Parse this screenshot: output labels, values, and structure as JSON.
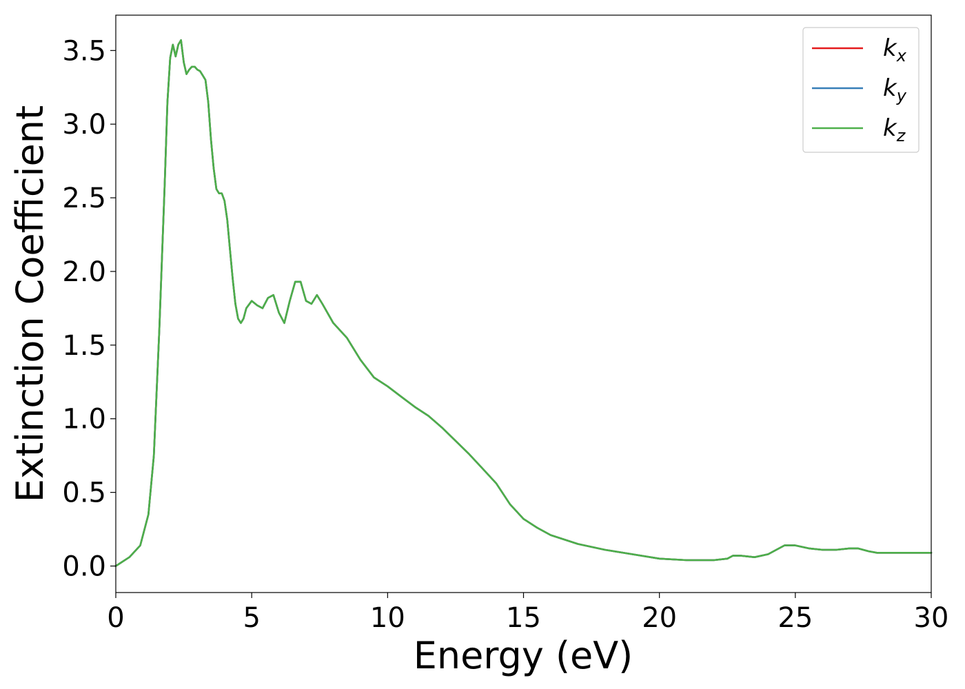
{
  "chart_data": {
    "type": "line",
    "xlabel": "Energy (eV)",
    "ylabel": "Extinction Coefficient",
    "xlim": [
      0,
      30
    ],
    "ylim": [
      -0.18,
      3.74
    ],
    "xticks": [
      0,
      5,
      10,
      15,
      20,
      25,
      30
    ],
    "xtick_labels": [
      "0",
      "5",
      "10",
      "15",
      "20",
      "25",
      "30"
    ],
    "yticks": [
      0.0,
      0.5,
      1.0,
      1.5,
      2.0,
      2.5,
      3.0,
      3.5
    ],
    "ytick_labels": [
      "0.0",
      "0.5",
      "1.0",
      "1.5",
      "2.0",
      "2.5",
      "3.0",
      "3.5"
    ],
    "grid": false,
    "legend_position": "top-right",
    "x": [
      0,
      0.5,
      0.9,
      1.2,
      1.4,
      1.6,
      1.8,
      1.9,
      2.0,
      2.1,
      2.2,
      2.3,
      2.4,
      2.5,
      2.6,
      2.7,
      2.8,
      2.9,
      3.0,
      3.1,
      3.2,
      3.3,
      3.4,
      3.5,
      3.6,
      3.7,
      3.8,
      3.9,
      4.0,
      4.1,
      4.2,
      4.3,
      4.4,
      4.5,
      4.6,
      4.7,
      4.8,
      5.0,
      5.2,
      5.4,
      5.6,
      5.8,
      6.0,
      6.2,
      6.4,
      6.6,
      6.8,
      7.0,
      7.2,
      7.4,
      7.6,
      8.0,
      8.5,
      9.0,
      9.5,
      10.0,
      10.5,
      11.0,
      11.5,
      12.0,
      12.5,
      13.0,
      13.5,
      14.0,
      14.5,
      15.0,
      15.5,
      16.0,
      17.0,
      18.0,
      19.0,
      20.0,
      21.0,
      22.0,
      22.5,
      22.7,
      23.0,
      23.5,
      24.0,
      24.3,
      24.6,
      25.0,
      25.5,
      26.0,
      26.5,
      27.0,
      27.3,
      27.7,
      28.0,
      28.5,
      29.0,
      30.0
    ],
    "series": [
      {
        "name": "k_x",
        "color": "#e41a1c",
        "values": [
          0.0,
          0.06,
          0.14,
          0.35,
          0.75,
          1.6,
          2.6,
          3.15,
          3.45,
          3.54,
          3.46,
          3.54,
          3.57,
          3.42,
          3.34,
          3.37,
          3.39,
          3.39,
          3.37,
          3.36,
          3.33,
          3.3,
          3.15,
          2.9,
          2.7,
          2.56,
          2.53,
          2.53,
          2.48,
          2.35,
          2.15,
          1.95,
          1.78,
          1.68,
          1.65,
          1.68,
          1.75,
          1.8,
          1.77,
          1.75,
          1.82,
          1.84,
          1.72,
          1.65,
          1.8,
          1.93,
          1.93,
          1.8,
          1.78,
          1.84,
          1.78,
          1.65,
          1.55,
          1.4,
          1.28,
          1.22,
          1.15,
          1.08,
          1.02,
          0.94,
          0.85,
          0.76,
          0.66,
          0.56,
          0.42,
          0.32,
          0.26,
          0.21,
          0.15,
          0.11,
          0.08,
          0.05,
          0.04,
          0.04,
          0.05,
          0.07,
          0.07,
          0.06,
          0.08,
          0.11,
          0.14,
          0.14,
          0.12,
          0.11,
          0.11,
          0.12,
          0.12,
          0.1,
          0.09,
          0.09,
          0.09,
          0.09
        ]
      },
      {
        "name": "k_y",
        "color": "#377eb8",
        "values": [
          0.0,
          0.06,
          0.14,
          0.35,
          0.75,
          1.6,
          2.6,
          3.15,
          3.45,
          3.54,
          3.46,
          3.54,
          3.57,
          3.42,
          3.34,
          3.37,
          3.39,
          3.39,
          3.37,
          3.36,
          3.33,
          3.3,
          3.15,
          2.9,
          2.7,
          2.56,
          2.53,
          2.53,
          2.48,
          2.35,
          2.15,
          1.95,
          1.78,
          1.68,
          1.65,
          1.68,
          1.75,
          1.8,
          1.77,
          1.75,
          1.82,
          1.84,
          1.72,
          1.65,
          1.8,
          1.93,
          1.93,
          1.8,
          1.78,
          1.84,
          1.78,
          1.65,
          1.55,
          1.4,
          1.28,
          1.22,
          1.15,
          1.08,
          1.02,
          0.94,
          0.85,
          0.76,
          0.66,
          0.56,
          0.42,
          0.32,
          0.26,
          0.21,
          0.15,
          0.11,
          0.08,
          0.05,
          0.04,
          0.04,
          0.05,
          0.07,
          0.07,
          0.06,
          0.08,
          0.11,
          0.14,
          0.14,
          0.12,
          0.11,
          0.11,
          0.12,
          0.12,
          0.1,
          0.09,
          0.09,
          0.09,
          0.09
        ]
      },
      {
        "name": "k_z",
        "color": "#4daf4a",
        "values": [
          0.0,
          0.06,
          0.14,
          0.35,
          0.75,
          1.6,
          2.6,
          3.15,
          3.45,
          3.54,
          3.46,
          3.54,
          3.57,
          3.42,
          3.34,
          3.37,
          3.39,
          3.39,
          3.37,
          3.36,
          3.33,
          3.3,
          3.15,
          2.9,
          2.7,
          2.56,
          2.53,
          2.53,
          2.48,
          2.35,
          2.15,
          1.95,
          1.78,
          1.68,
          1.65,
          1.68,
          1.75,
          1.8,
          1.77,
          1.75,
          1.82,
          1.84,
          1.72,
          1.65,
          1.8,
          1.93,
          1.93,
          1.8,
          1.78,
          1.84,
          1.78,
          1.65,
          1.55,
          1.4,
          1.28,
          1.22,
          1.15,
          1.08,
          1.02,
          0.94,
          0.85,
          0.76,
          0.66,
          0.56,
          0.42,
          0.32,
          0.26,
          0.21,
          0.15,
          0.11,
          0.08,
          0.05,
          0.04,
          0.04,
          0.05,
          0.07,
          0.07,
          0.06,
          0.08,
          0.11,
          0.14,
          0.14,
          0.12,
          0.11,
          0.11,
          0.12,
          0.12,
          0.1,
          0.09,
          0.09,
          0.09,
          0.09
        ]
      }
    ],
    "legend": [
      {
        "base": "k",
        "sub": "x",
        "color": "#e41a1c"
      },
      {
        "base": "k",
        "sub": "y",
        "color": "#377eb8"
      },
      {
        "base": "k",
        "sub": "z",
        "color": "#4daf4a"
      }
    ]
  }
}
